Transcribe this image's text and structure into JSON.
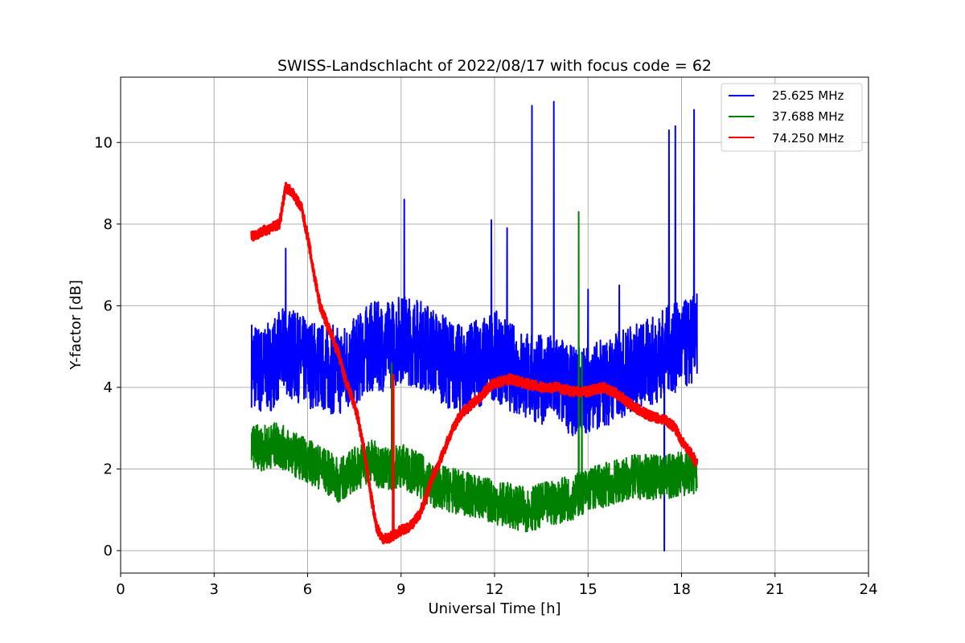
{
  "chart_data": {
    "type": "line",
    "title": "SWISS-Landschlacht of 2022/08/17 with focus code = 62",
    "xlabel": "Universal Time [h]",
    "ylabel": "Y-factor [dB]",
    "xlim": [
      0,
      24
    ],
    "ylim": [
      -0.55,
      11.6
    ],
    "xticks": [
      0,
      3,
      6,
      9,
      12,
      15,
      18,
      21,
      24
    ],
    "yticks": [
      0,
      2,
      4,
      6,
      8,
      10
    ],
    "grid": true,
    "legend_position": "top-right",
    "series": [
      {
        "name": "25.625 MHz",
        "color": "#0000ff",
        "points": [
          [
            4.2,
            4.6
          ],
          [
            4.5,
            4.4
          ],
          [
            4.8,
            4.5
          ],
          [
            5.0,
            4.7
          ],
          [
            5.3,
            4.9
          ],
          [
            5.5,
            4.8
          ],
          [
            6.0,
            4.6
          ],
          [
            6.5,
            4.5
          ],
          [
            7.0,
            4.4
          ],
          [
            7.5,
            4.6
          ],
          [
            8.0,
            5.0
          ],
          [
            8.5,
            5.0
          ],
          [
            9.0,
            5.2
          ],
          [
            9.5,
            5.1
          ],
          [
            10.0,
            4.9
          ],
          [
            10.5,
            4.6
          ],
          [
            11.0,
            4.4
          ],
          [
            11.5,
            4.6
          ],
          [
            12.0,
            4.8
          ],
          [
            12.5,
            4.5
          ],
          [
            13.0,
            4.3
          ],
          [
            13.5,
            4.2
          ],
          [
            14.0,
            4.2
          ],
          [
            14.5,
            3.9
          ],
          [
            15.0,
            4.0
          ],
          [
            15.5,
            4.1
          ],
          [
            16.0,
            4.3
          ],
          [
            16.5,
            4.5
          ],
          [
            17.0,
            4.6
          ],
          [
            17.5,
            4.9
          ],
          [
            18.0,
            5.0
          ],
          [
            18.5,
            5.2
          ]
        ],
        "spikes": [
          [
            5.3,
            7.4
          ],
          [
            9.1,
            8.6
          ],
          [
            11.9,
            8.1
          ],
          [
            12.4,
            7.9
          ],
          [
            13.2,
            10.9
          ],
          [
            13.9,
            11.0
          ],
          [
            15.0,
            6.4
          ],
          [
            16.0,
            6.5
          ],
          [
            17.6,
            10.3
          ],
          [
            17.8,
            10.4
          ],
          [
            18.4,
            10.8
          ],
          [
            17.45,
            0.0
          ]
        ]
      },
      {
        "name": "37.688 MHz",
        "color": "#008000",
        "points": [
          [
            4.2,
            2.6
          ],
          [
            4.5,
            2.5
          ],
          [
            5.0,
            2.6
          ],
          [
            5.5,
            2.4
          ],
          [
            6.0,
            2.2
          ],
          [
            6.5,
            2.0
          ],
          [
            7.0,
            1.7
          ],
          [
            7.5,
            2.0
          ],
          [
            8.0,
            2.2
          ],
          [
            8.5,
            2.0
          ],
          [
            9.0,
            2.1
          ],
          [
            9.5,
            1.9
          ],
          [
            10.0,
            1.6
          ],
          [
            10.5,
            1.5
          ],
          [
            11.0,
            1.4
          ],
          [
            11.5,
            1.3
          ],
          [
            12.0,
            1.2
          ],
          [
            12.5,
            1.1
          ],
          [
            13.0,
            1.0
          ],
          [
            13.5,
            1.1
          ],
          [
            14.0,
            1.2
          ],
          [
            14.5,
            1.3
          ],
          [
            15.0,
            1.5
          ],
          [
            15.5,
            1.6
          ],
          [
            16.0,
            1.7
          ],
          [
            16.5,
            1.8
          ],
          [
            17.0,
            1.8
          ],
          [
            17.5,
            1.8
          ],
          [
            18.0,
            1.9
          ],
          [
            18.5,
            1.9
          ]
        ],
        "spikes": [
          [
            8.7,
            4.6
          ],
          [
            14.7,
            8.3
          ],
          [
            14.8,
            4.8
          ]
        ]
      },
      {
        "name": "74.250 MHz",
        "color": "#ff0000",
        "points": [
          [
            4.2,
            7.7
          ],
          [
            4.5,
            7.8
          ],
          [
            4.8,
            7.9
          ],
          [
            5.1,
            8.0
          ],
          [
            5.3,
            8.9
          ],
          [
            5.5,
            8.8
          ],
          [
            5.8,
            8.4
          ],
          [
            6.0,
            7.7
          ],
          [
            6.2,
            6.8
          ],
          [
            6.4,
            6.0
          ],
          [
            6.6,
            5.6
          ],
          [
            6.8,
            5.2
          ],
          [
            7.0,
            4.8
          ],
          [
            7.2,
            4.2
          ],
          [
            7.4,
            3.8
          ],
          [
            7.6,
            3.3
          ],
          [
            7.8,
            2.5
          ],
          [
            8.0,
            1.5
          ],
          [
            8.2,
            0.6
          ],
          [
            8.4,
            0.3
          ],
          [
            8.6,
            0.3
          ],
          [
            8.8,
            0.4
          ],
          [
            9.0,
            0.5
          ],
          [
            9.3,
            0.6
          ],
          [
            9.6,
            0.9
          ],
          [
            9.8,
            1.3
          ],
          [
            10.0,
            1.8
          ],
          [
            10.2,
            2.1
          ],
          [
            10.5,
            2.7
          ],
          [
            10.8,
            3.2
          ],
          [
            11.0,
            3.4
          ],
          [
            11.3,
            3.6
          ],
          [
            11.6,
            3.8
          ],
          [
            11.8,
            4.0
          ],
          [
            12.0,
            4.1
          ],
          [
            12.5,
            4.2
          ],
          [
            13.0,
            4.1
          ],
          [
            13.5,
            4.0
          ],
          [
            14.0,
            4.0
          ],
          [
            14.5,
            3.9
          ],
          [
            15.0,
            3.9
          ],
          [
            15.5,
            4.0
          ],
          [
            16.0,
            3.8
          ],
          [
            16.5,
            3.5
          ],
          [
            17.0,
            3.3
          ],
          [
            17.5,
            3.2
          ],
          [
            17.8,
            3.0
          ],
          [
            18.0,
            2.7
          ],
          [
            18.3,
            2.4
          ],
          [
            18.5,
            2.1
          ]
        ],
        "spikes": [
          [
            8.75,
            4.3
          ]
        ]
      }
    ]
  }
}
